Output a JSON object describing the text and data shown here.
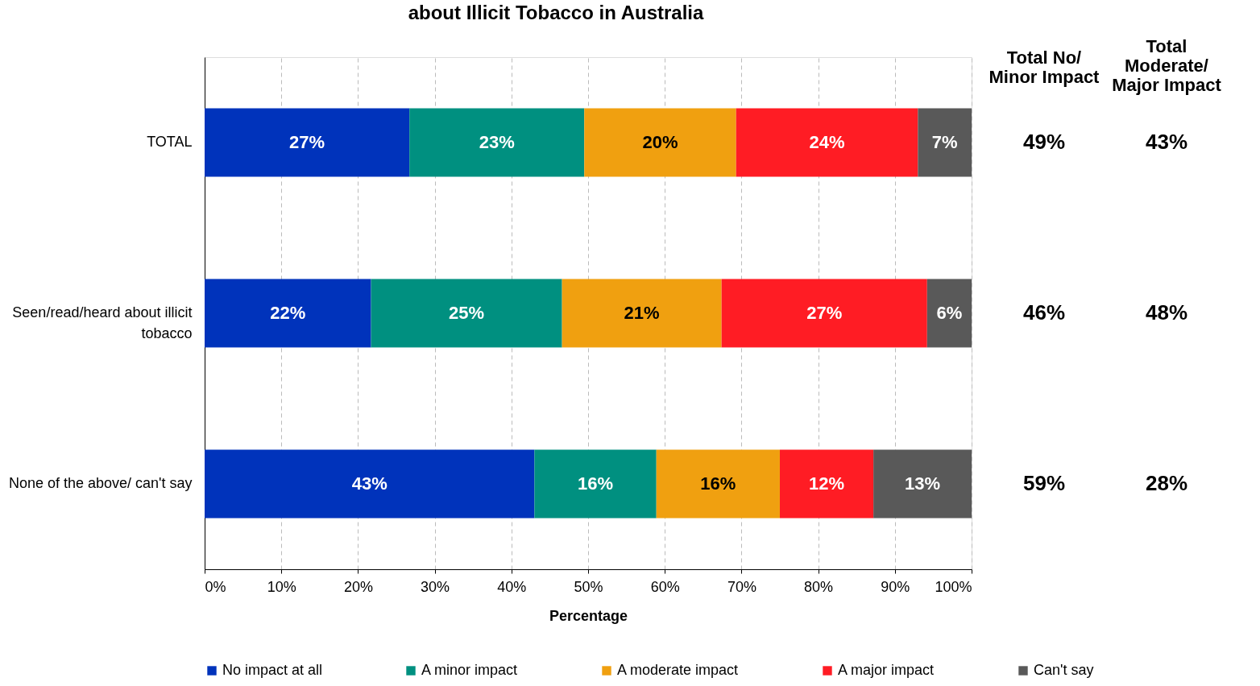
{
  "chart_data": {
    "type": "bar",
    "orientation": "horizontal",
    "stacked": true,
    "title": "about Illicit Tobacco in Australia",
    "xlabel": "Percentage",
    "categories": [
      "TOTAL",
      "Seen/read/heard about illicit tobacco",
      "None of the above/ can't say"
    ],
    "series": [
      {
        "name": "No impact at all",
        "color": "#0033bb",
        "values": [
          26.7,
          21.7,
          43.0
        ],
        "value_labels": [
          "27%",
          "22%",
          "43%"
        ]
      },
      {
        "name": "A minor impact",
        "color": "#009080",
        "values": [
          22.8,
          24.9,
          15.9
        ],
        "value_labels": [
          "23%",
          "25%",
          "16%"
        ]
      },
      {
        "name": "A moderate impact",
        "color": "#f0a010",
        "values": [
          19.8,
          20.8,
          16.1
        ],
        "value_labels": [
          "20%",
          "21%",
          "16%"
        ]
      },
      {
        "name": "A major impact",
        "color": "#ff1c24",
        "values": [
          23.7,
          26.8,
          12.2
        ],
        "value_labels": [
          "24%",
          "27%",
          "12%"
        ]
      },
      {
        "name": "Can't say",
        "color": "#595959",
        "values": [
          7.0,
          5.8,
          12.8
        ],
        "value_labels": [
          "7%",
          "6%",
          "13%"
        ]
      }
    ],
    "xlim": [
      0,
      100
    ],
    "xticks": [
      {
        "value": 0,
        "label": "0%"
      },
      {
        "value": 10,
        "label": "10%"
      },
      {
        "value": 20,
        "label": "20%"
      },
      {
        "value": 30,
        "label": "30%"
      },
      {
        "value": 40,
        "label": "40%"
      },
      {
        "value": 50,
        "label": "50%"
      },
      {
        "value": 60,
        "label": "60%"
      },
      {
        "value": 70,
        "label": "70%"
      },
      {
        "value": 80,
        "label": "80%"
      },
      {
        "value": 90,
        "label": "90%"
      },
      {
        "value": 100,
        "label": "100%"
      }
    ],
    "grid": "x",
    "legend": "bottom",
    "annotations": [
      "Total No/\nMinor Impact",
      "Total\nModerate/\nMajor Impact",
      "49%",
      "43%",
      "46%",
      "48%",
      "59%",
      "28%"
    ]
  }
}
